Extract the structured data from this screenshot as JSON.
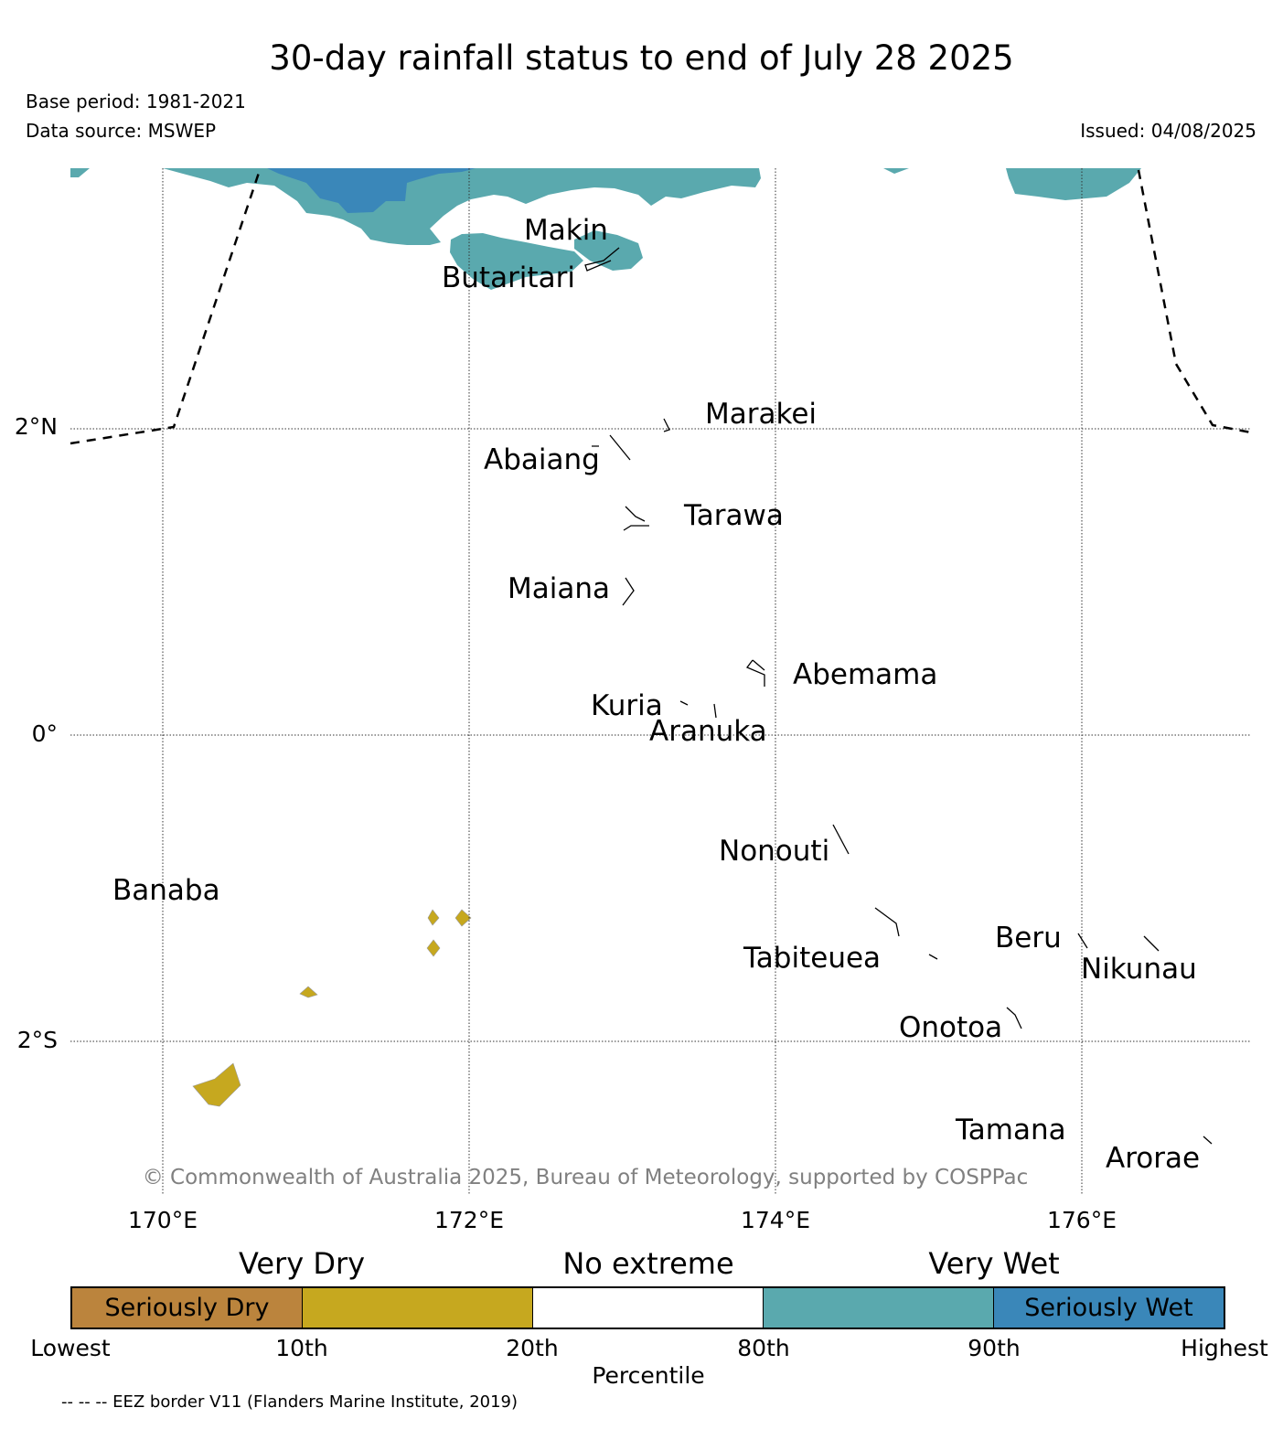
{
  "header": {
    "title": "30-day rainfall status to end of July 28 2025",
    "base_period": "Base period: 1981-2021",
    "data_source": "Data source: MSWEP",
    "issued": "Issued: 04/08/2025"
  },
  "map": {
    "lat_labels": [
      "2°N",
      "0°",
      "2°S"
    ],
    "lon_labels": [
      "170°E",
      "172°E",
      "174°E",
      "176°E"
    ],
    "places": [
      {
        "id": "makin",
        "name": "Makin"
      },
      {
        "id": "butaritari",
        "name": "Butaritari"
      },
      {
        "id": "marakei",
        "name": "Marakei"
      },
      {
        "id": "abaiang",
        "name": "Abaiang"
      },
      {
        "id": "tarawa",
        "name": "Tarawa"
      },
      {
        "id": "maiana",
        "name": "Maiana"
      },
      {
        "id": "abemama",
        "name": "Abemama"
      },
      {
        "id": "kuria",
        "name": "Kuria"
      },
      {
        "id": "aranuka",
        "name": "Aranuka"
      },
      {
        "id": "nonouti",
        "name": "Nonouti"
      },
      {
        "id": "banaba",
        "name": "Banaba"
      },
      {
        "id": "beru",
        "name": "Beru"
      },
      {
        "id": "tabiteuea",
        "name": "Tabiteuea"
      },
      {
        "id": "nikunau",
        "name": "Nikunau"
      },
      {
        "id": "onotoa",
        "name": "Onotoa"
      },
      {
        "id": "tamana",
        "name": "Tamana"
      },
      {
        "id": "arorae",
        "name": "Arorae"
      }
    ],
    "copyright": "© Commonwealth of Australia 2025, Bureau of Meteorology, supported by COSPPac",
    "colors": {
      "very_wet": "#5aa9ae",
      "seriously_wet": "#3a87b9",
      "very_dry": "#c6a81f",
      "seriously_dry": "#bb843d",
      "no_extreme": "#ffffff"
    }
  },
  "legend": {
    "categories": [
      "Very Dry",
      "No extreme",
      "Very Wet"
    ],
    "segments": [
      {
        "label": "Seriously Dry",
        "color": "#bb843d"
      },
      {
        "label": "",
        "color": "#c6a81f"
      },
      {
        "label": "",
        "color": "#ffffff"
      },
      {
        "label": "",
        "color": "#5aa9ae"
      },
      {
        "label": "Seriously Wet",
        "color": "#3a87b9"
      }
    ],
    "ticks": [
      "Lowest",
      "10th",
      "20th",
      "80th",
      "90th",
      "Highest"
    ],
    "axis_label": "Percentile"
  },
  "footnote": "-- -- -- EEZ border V11 (Flanders Marine Institute, 2019)"
}
